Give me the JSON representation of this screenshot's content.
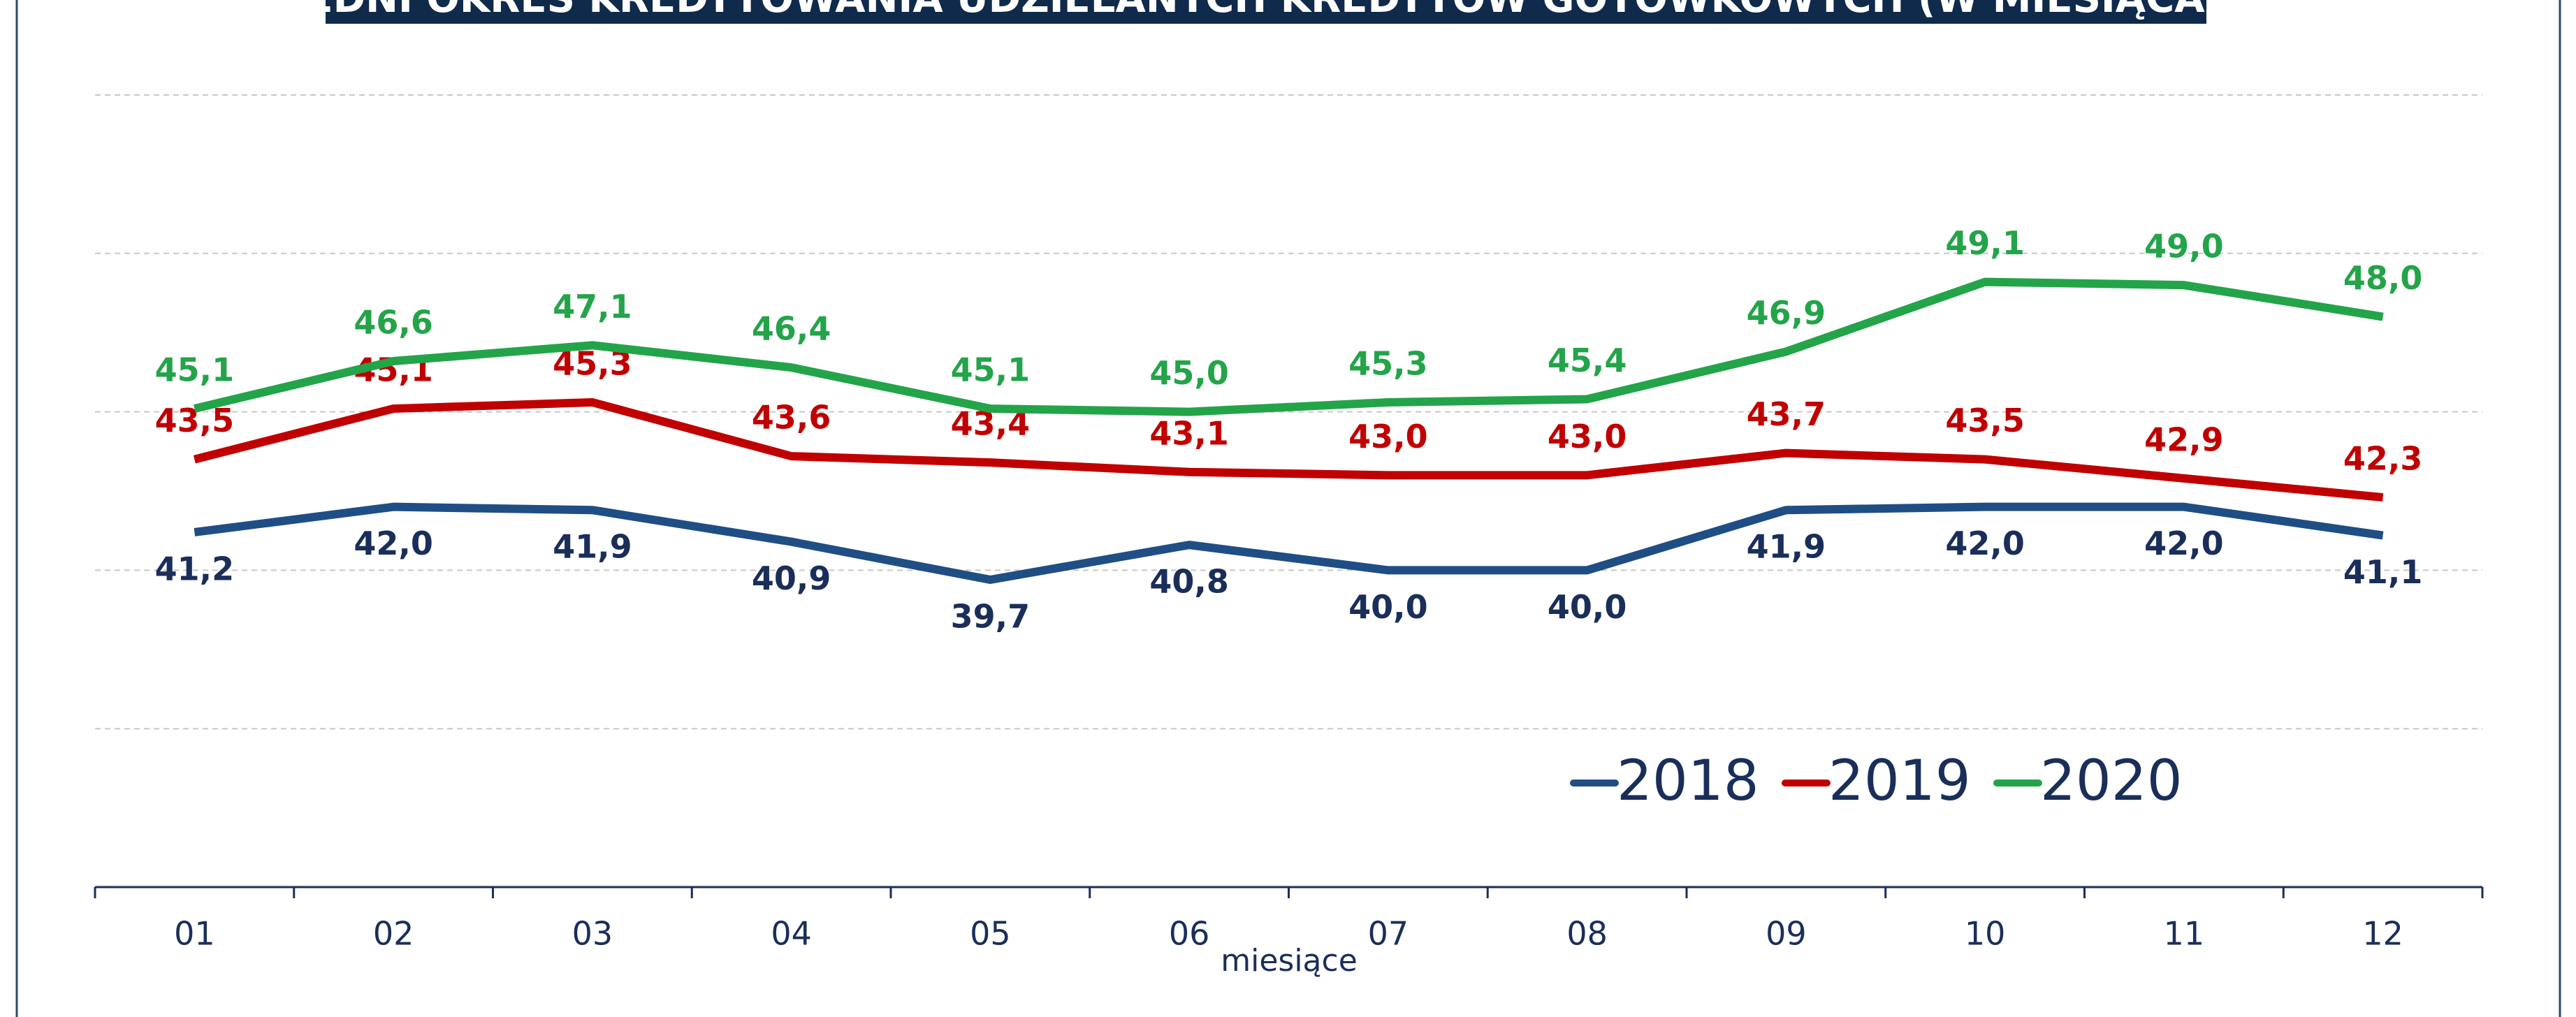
{
  "chart_data": {
    "type": "line",
    "title": "ŚREDNI OKRES KREDYTOWANIA UDZIELANYCH KREDYTÓW GOTÓWKOWYCH (W MIESIĄCACH)",
    "xlabel": "miesiące",
    "categories": [
      "01",
      "02",
      "03",
      "04",
      "05",
      "06",
      "07",
      "08",
      "09",
      "10",
      "11",
      "12"
    ],
    "ylim": [
      30,
      55
    ],
    "yticks": [
      30,
      35,
      40,
      45,
      50,
      55
    ],
    "grid": true,
    "legend": "lower right",
    "series": [
      {
        "name": "2018",
        "color": "#1f4e85",
        "label_color": "#1a2e5a",
        "label_position": "below",
        "values": [
          41.2,
          42.0,
          41.9,
          40.9,
          39.7,
          40.8,
          40.0,
          40.0,
          41.9,
          42.0,
          42.0,
          41.1
        ],
        "value_labels": [
          "41,2",
          "42,0",
          "41,9",
          "40,9",
          "39,7",
          "40,8",
          "40,0",
          "40,0",
          "41,9",
          "42,0",
          "42,0",
          "41,1"
        ]
      },
      {
        "name": "2019",
        "color": "#c00000",
        "label_color": "#c00000",
        "label_position": "above",
        "values": [
          43.5,
          45.1,
          45.3,
          43.6,
          43.4,
          43.1,
          43.0,
          43.0,
          43.7,
          43.5,
          42.9,
          42.3
        ],
        "value_labels": [
          "43,5",
          "45,1",
          "45,3",
          "43,6",
          "43,4",
          "43,1",
          "43,0",
          "43,0",
          "43,7",
          "43,5",
          "42,9",
          "42,3"
        ]
      },
      {
        "name": "2020",
        "color": "#23a449",
        "label_color": "#23a449",
        "label_position": "above",
        "values": [
          45.1,
          46.6,
          47.1,
          46.4,
          45.1,
          45.0,
          45.3,
          45.4,
          46.9,
          49.1,
          49.0,
          48.0
        ],
        "value_labels": [
          "45,1",
          "46,6",
          "47,1",
          "46,4",
          "45,1",
          "45,0",
          "45,3",
          "45,4",
          "46,9",
          "49,1",
          "49,0",
          "48,0"
        ]
      }
    ]
  }
}
